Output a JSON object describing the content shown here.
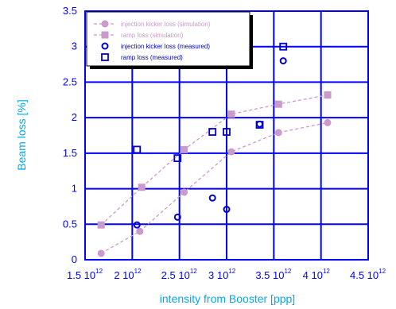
{
  "chart_data": {
    "type": "scatter",
    "xlabel": "intensity from Booster  [ppp]",
    "ylabel": "Beam loss [%]",
    "xlim": [
      1.5,
      4.5
    ],
    "ylim": [
      0,
      3.5
    ],
    "x_ticks": [
      1.5,
      2,
      2.5,
      3,
      3.5,
      4,
      4.5
    ],
    "x_tick_labels": [
      "1.5 10",
      "2 10",
      "2.5 10",
      "3 10",
      "3.5 10",
      "4 10",
      "4.5 10"
    ],
    "x_tick_exponent": "12",
    "y_ticks": [
      0,
      0.5,
      1,
      1.5,
      2,
      2.5,
      3,
      3.5
    ],
    "y_tick_labels": [
      "0",
      "0.5",
      "1",
      "1.5",
      "2",
      "2.5",
      "3",
      "3.5"
    ],
    "grid": true,
    "legend_position": "top-left",
    "series": [
      {
        "name": "injection kicker loss (simulation)",
        "style": "dashed-line-filled-circle",
        "color": "#cc99cc",
        "x": [
          1.67,
          2.08,
          2.55,
          3.05,
          3.55,
          4.07
        ],
        "y": [
          0.09,
          0.4,
          0.95,
          1.52,
          1.79,
          1.93
        ]
      },
      {
        "name": "ramp loss (simulation)",
        "style": "dashed-line-filled-square",
        "color": "#cc99cc",
        "x": [
          1.67,
          2.1,
          2.55,
          3.05,
          3.55,
          4.07
        ],
        "y": [
          0.49,
          1.02,
          1.55,
          2.05,
          2.19,
          2.32
        ]
      },
      {
        "name": "injection kicker loss (measured)",
        "style": "open-circle",
        "color": "#0000cc",
        "x": [
          2.05,
          2.48,
          2.85,
          3.0,
          3.35,
          3.6
        ],
        "y": [
          0.49,
          0.6,
          0.87,
          0.71,
          1.91,
          2.8
        ]
      },
      {
        "name": "ramp loss (measured)",
        "style": "open-square",
        "color": "#0000cc",
        "x": [
          2.05,
          2.48,
          2.85,
          3.0,
          3.35,
          3.6
        ],
        "y": [
          1.55,
          1.43,
          1.8,
          1.8,
          1.9,
          3.0
        ]
      }
    ]
  }
}
